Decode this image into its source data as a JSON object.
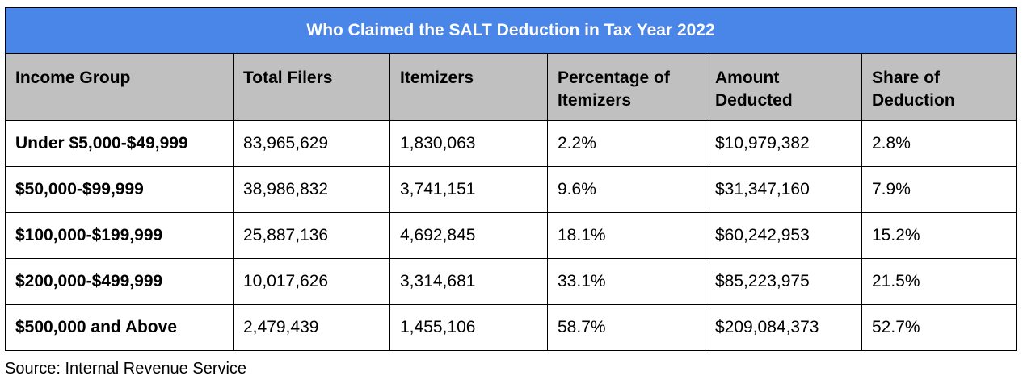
{
  "colors": {
    "title_background": "#4a86e8",
    "header_background": "#c0c0c0",
    "border": "#000000",
    "title_text": "#ffffff"
  },
  "chart_data": {
    "type": "table",
    "title": "Who Claimed the SALT Deduction in Tax Year 2022",
    "columns": [
      "Income Group",
      "Total Filers",
      "Itemizers",
      "Percentage of Itemizers",
      "Amount Deducted",
      "Share of Deduction"
    ],
    "rows": [
      [
        "Under $5,000-$49,999",
        "83,965,629",
        "1,830,063",
        "2.2%",
        "$10,979,382",
        "2.8%"
      ],
      [
        "$50,000-$99,999",
        "38,986,832",
        "3,741,151",
        "9.6%",
        "$31,347,160",
        "7.9%"
      ],
      [
        "$100,000-$199,999",
        "25,887,136",
        "4,692,845",
        "18.1%",
        "$60,242,953",
        "15.2%"
      ],
      [
        "$200,000-$499,999",
        "10,017,626",
        "3,314,681",
        "33.1%",
        "$85,223,975",
        "21.5%"
      ],
      [
        "$500,000 and Above",
        "2,479,439",
        "1,455,106",
        "58.7%",
        "$209,084,373",
        "52.7%"
      ]
    ],
    "source": "Source: Internal Revenue Service"
  }
}
